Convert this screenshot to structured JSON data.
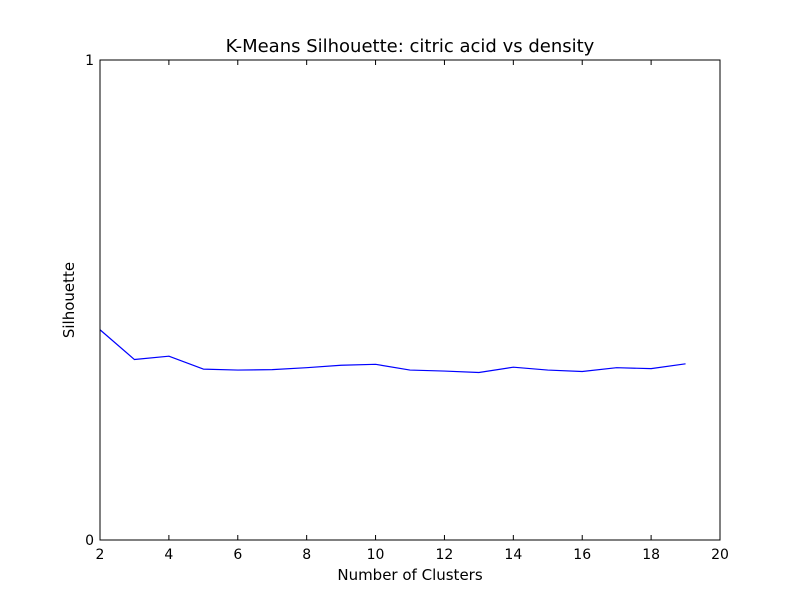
{
  "chart_data": {
    "type": "line",
    "title": "K-Means Silhouette: citric acid vs density",
    "xlabel": "Number of Clusters",
    "ylabel": "Silhouette",
    "xlim": [
      2,
      20
    ],
    "ylim": [
      0,
      1
    ],
    "xticks": [
      "2",
      "4",
      "6",
      "8",
      "10",
      "12",
      "14",
      "16",
      "18",
      "20"
    ],
    "yticks": [
      "0",
      "1"
    ],
    "grid": false,
    "series": [
      {
        "color": "#0000ff",
        "x": [
          2,
          3,
          4,
          5,
          6,
          7,
          8,
          9,
          10,
          11,
          12,
          13,
          14,
          15,
          16,
          17,
          18,
          19
        ],
        "y": [
          0.438,
          0.376,
          0.383,
          0.356,
          0.354,
          0.355,
          0.359,
          0.364,
          0.366,
          0.354,
          0.352,
          0.349,
          0.36,
          0.354,
          0.351,
          0.359,
          0.357,
          0.367
        ]
      }
    ]
  }
}
